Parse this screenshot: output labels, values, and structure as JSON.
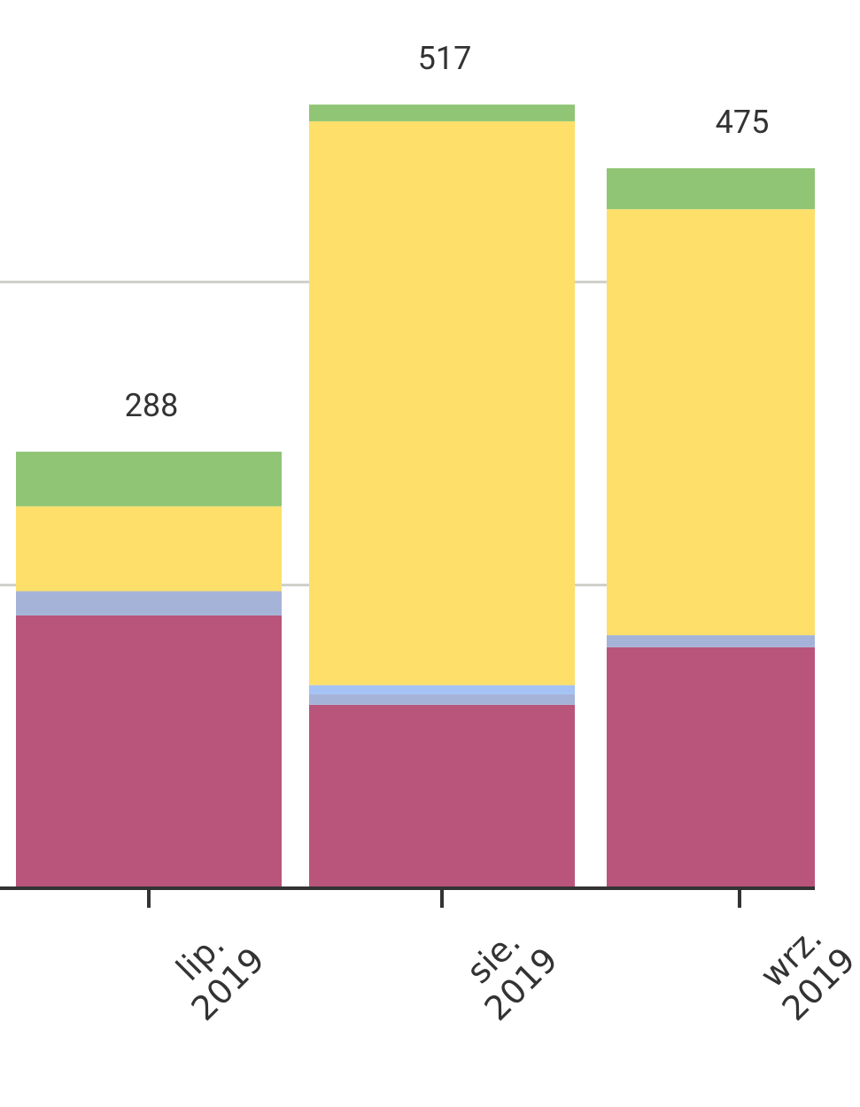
{
  "chart_data": {
    "type": "stacked_bar",
    "categories": [
      "lip. 2019",
      "sie. 2019",
      "wrz. 2019"
    ],
    "series": [
      {
        "color": "#b9557a",
        "values": [
          180,
          121,
          159
        ]
      },
      {
        "color": "#a6b3d9",
        "values": [
          16,
          7,
          8
        ]
      },
      {
        "color": "#a4c2f4",
        "values": [
          0,
          6,
          0
        ]
      },
      {
        "color": "#fddf6a",
        "values": [
          56,
          372,
          281
        ]
      },
      {
        "color": "#8fc575",
        "values": [
          36,
          11,
          27
        ]
      }
    ],
    "totals": [
      288,
      517,
      475
    ],
    "ylim": [
      0,
      586
    ],
    "yticks": [
      0,
      200,
      400
    ],
    "grid": true
  }
}
